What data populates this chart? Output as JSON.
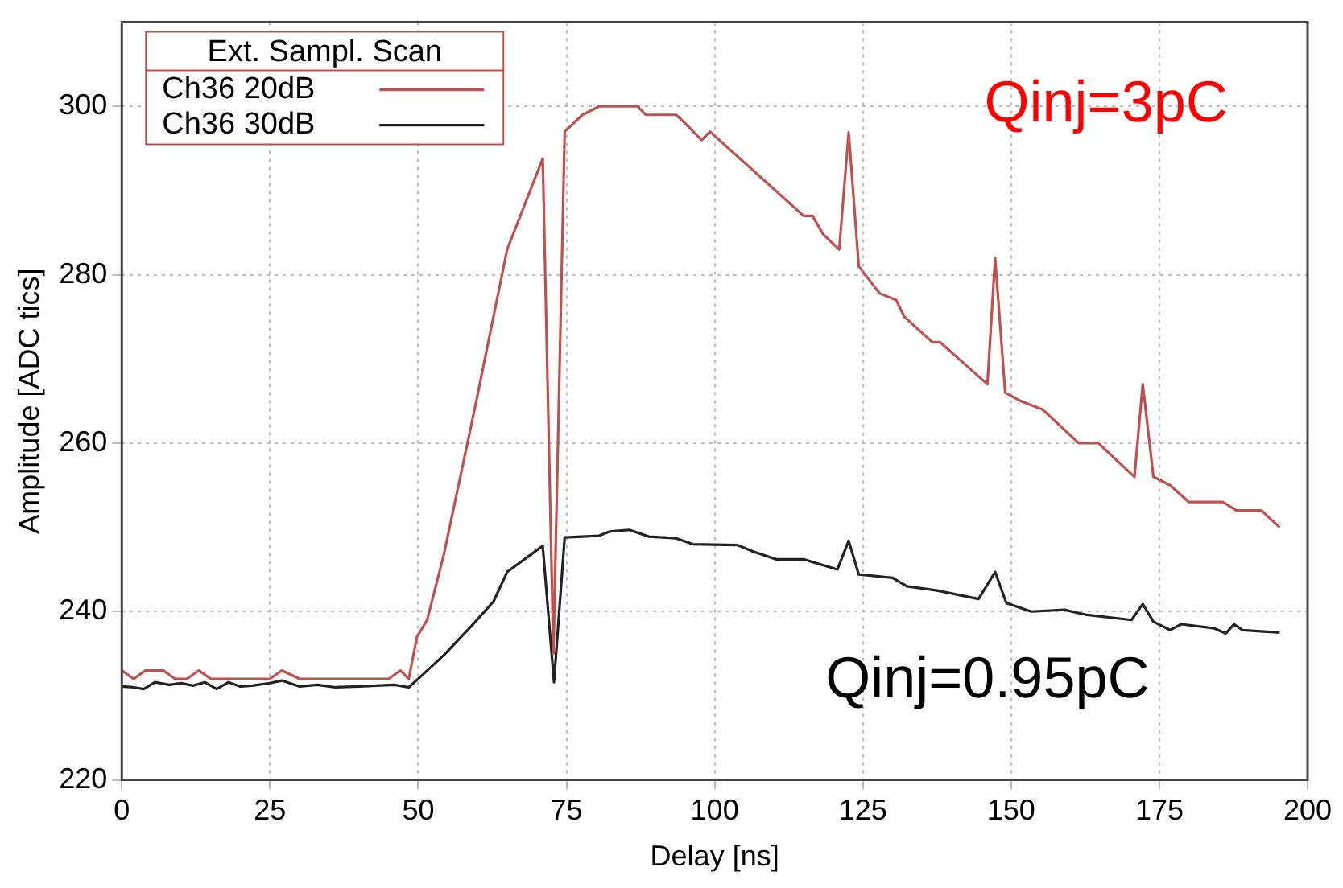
{
  "chart_data": {
    "type": "line",
    "xlabel": "Delay [ns]",
    "ylabel": "Amplitude [ADC tics]",
    "legend_title": "Ext. Sampl. Scan",
    "legend": "top left",
    "grid": true,
    "marker": "none",
    "line_style": "solid",
    "xlim": [
      0,
      200
    ],
    "xticks": [
      0,
      25,
      50,
      75,
      100,
      125,
      150,
      175,
      200
    ],
    "ylim": [
      220,
      310
    ],
    "yticks": [
      220,
      240,
      260,
      280,
      300
    ],
    "series": [
      {
        "name": "Ch36 20dB",
        "color": "#c0504d",
        "x": [
          0,
          2,
          4,
          7,
          9,
          11,
          13,
          15,
          18,
          20,
          22,
          25,
          27,
          30,
          35,
          40,
          45,
          47,
          48.4,
          49.8,
          51.5,
          54.3,
          59.5,
          65,
          71,
          72.8,
          74.7,
          77.7,
          80.5,
          87,
          88.4,
          93.5,
          95,
          97.8,
          99.2,
          115,
          116.5,
          118.3,
          121,
          122.6,
          124.3,
          127.8,
          130.6,
          132,
          136.7,
          138,
          146,
          147.3,
          149,
          151.6,
          155.3,
          161.4,
          164.7,
          170.8,
          172.2,
          174,
          176.8,
          180,
          185.7,
          188,
          192.2,
          195.3
        ],
        "values": [
          233,
          232,
          233,
          233,
          232,
          232,
          233,
          232,
          232,
          232,
          232,
          232,
          233,
          232,
          232,
          232,
          232,
          233,
          232,
          237,
          239,
          246.7,
          264,
          283,
          293.8,
          235,
          297,
          299,
          300,
          300,
          299,
          299,
          298,
          296,
          297,
          287,
          287,
          284.8,
          283,
          296.9,
          281,
          277.8,
          277,
          275,
          272,
          272,
          267,
          282,
          266,
          265,
          264,
          260,
          260,
          256,
          267,
          256,
          255,
          253,
          253,
          252,
          252,
          250
        ]
      },
      {
        "name": "Ch36 30dB",
        "color": "#222222",
        "x": [
          0,
          2,
          3.7,
          5.6,
          8,
          10,
          12,
          14,
          16,
          18,
          20,
          22,
          25,
          27,
          30,
          33,
          36,
          40,
          43,
          46,
          48.4,
          50.6,
          54.3,
          59,
          62.7,
          65,
          71,
          72.9,
          74.7,
          80.5,
          82.3,
          85.6,
          88.9,
          93.5,
          96.3,
          103.8,
          106.6,
          110.4,
          115,
          120.7,
          122.6,
          124.3,
          130,
          132.4,
          137.5,
          144.5,
          147.3,
          149.2,
          153.4,
          159,
          162.8,
          170.3,
          172.2,
          174,
          176.8,
          178.7,
          184.3,
          186.2,
          187.6,
          189,
          195.3
        ],
        "values": [
          231.1,
          231,
          230.8,
          231.6,
          231.3,
          231.5,
          231.2,
          231.6,
          230.8,
          231.6,
          231.1,
          231.2,
          231.5,
          231.8,
          231.1,
          231.3,
          231,
          231.1,
          231.2,
          231.3,
          231,
          232.4,
          234.8,
          238.3,
          241.2,
          244.7,
          247.8,
          231.6,
          248.8,
          249,
          249.5,
          249.7,
          248.9,
          248.7,
          248,
          247.9,
          247.1,
          246.2,
          246.2,
          245,
          248.4,
          244.4,
          244,
          243,
          242.5,
          241.5,
          244.7,
          241,
          240,
          240.2,
          239.6,
          239,
          240.9,
          238.8,
          237.8,
          238.5,
          238,
          237.4,
          238.5,
          237.8,
          237.5
        ]
      }
    ],
    "annotations": [
      "Qinj=3pC",
      "Qinj=0.95pC"
    ]
  }
}
